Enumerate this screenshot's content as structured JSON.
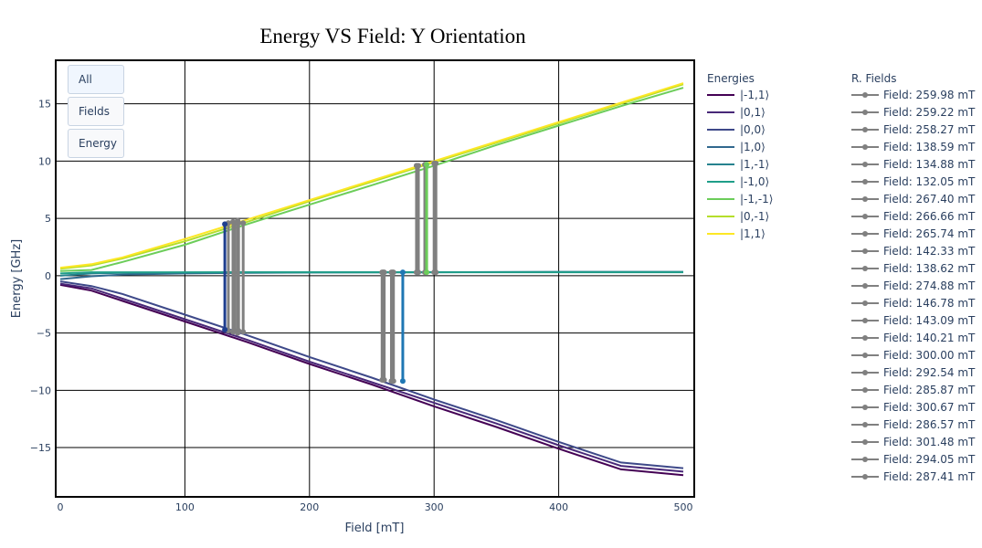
{
  "buttons": [
    {
      "label": "All",
      "active": true
    },
    {
      "label": "Fields",
      "active": false
    },
    {
      "label": "Energy",
      "active": false
    }
  ],
  "chart_data": {
    "type": "line",
    "title": "Energy VS Field: Y Orientation",
    "xlabel": "Field [mT]",
    "ylabel": "Energy [GHz]",
    "xlim": [
      0,
      500
    ],
    "ylim": [
      -19.3,
      18.8
    ],
    "xticks": [
      0,
      100,
      200,
      300,
      400,
      500
    ],
    "yticks": [
      -15,
      -10,
      -5,
      0,
      5,
      10,
      15
    ],
    "grid": true,
    "legend_energies_title": "Energies",
    "legend_fields_title": "R. Fields",
    "series": [
      {
        "name": "|-1,1⟩",
        "color": "#440154",
        "x": [
          0,
          25,
          50,
          100,
          150,
          200,
          250,
          300,
          350,
          400,
          450,
          500
        ],
        "y": [
          -0.8,
          -1.3,
          -2.2,
          -4.0,
          -5.8,
          -7.7,
          -9.5,
          -11.4,
          -13.2,
          -15.1,
          -16.9,
          -17.4
        ]
      },
      {
        "name": "|0,1⟩",
        "color": "#482878",
        "x": [
          0,
          25,
          50,
          100,
          150,
          200,
          250,
          300,
          350,
          400,
          450,
          500
        ],
        "y": [
          -0.7,
          -1.1,
          -2.0,
          -3.8,
          -5.6,
          -7.5,
          -9.3,
          -11.1,
          -12.9,
          -14.8,
          -16.6,
          -17.1
        ]
      },
      {
        "name": "|0,0⟩",
        "color": "#3e4989",
        "x": [
          0,
          25,
          50,
          100,
          150,
          200,
          250,
          300,
          350,
          400,
          450,
          500
        ],
        "y": [
          -0.5,
          -0.9,
          -1.6,
          -3.4,
          -5.2,
          -7.1,
          -8.9,
          -10.8,
          -12.6,
          -14.5,
          -16.3,
          -16.8
        ]
      },
      {
        "name": "|1,0⟩",
        "color": "#31688e",
        "x": [
          0,
          25,
          50,
          100,
          150,
          200,
          300,
          400,
          500
        ],
        "y": [
          -0.3,
          -0.05,
          0.1,
          0.2,
          0.25,
          0.28,
          0.3,
          0.32,
          0.33
        ]
      },
      {
        "name": "|1,-1⟩",
        "color": "#26828e",
        "x": [
          0,
          25,
          50,
          100,
          150,
          200,
          300,
          400,
          500
        ],
        "y": [
          0.0,
          0.2,
          0.25,
          0.28,
          0.3,
          0.3,
          0.31,
          0.32,
          0.33
        ]
      },
      {
        "name": "|-1,0⟩",
        "color": "#1f9e89",
        "x": [
          0,
          25,
          50,
          100,
          150,
          200,
          300,
          400,
          500
        ],
        "y": [
          0.2,
          0.3,
          0.3,
          0.3,
          0.3,
          0.3,
          0.3,
          0.3,
          0.3
        ]
      },
      {
        "name": "|-1,-1⟩",
        "color": "#6ccd5a",
        "x": [
          0,
          25,
          50,
          100,
          150,
          200,
          250,
          300,
          350,
          400,
          450,
          500
        ],
        "y": [
          0.4,
          0.5,
          1.2,
          2.7,
          4.5,
          6.2,
          7.9,
          9.6,
          11.4,
          13.1,
          14.8,
          16.4
        ]
      },
      {
        "name": "|0,-1⟩",
        "color": "#b5de2b",
        "x": [
          0,
          25,
          50,
          100,
          150,
          200,
          250,
          300,
          350,
          400,
          450,
          500
        ],
        "y": [
          0.6,
          0.9,
          1.5,
          3.0,
          4.7,
          6.5,
          8.2,
          9.9,
          11.6,
          13.3,
          15.0,
          16.7
        ]
      },
      {
        "name": "|1,1⟩",
        "color": "#fde725",
        "x": [
          0,
          25,
          50,
          100,
          150,
          200,
          250,
          300,
          350,
          400,
          450,
          500
        ],
        "y": [
          0.7,
          1.0,
          1.6,
          3.2,
          4.9,
          6.6,
          8.3,
          10.0,
          11.7,
          13.4,
          15.1,
          16.8
        ]
      }
    ],
    "resonance_fields": [
      {
        "name": "Field: 259.98 mT",
        "x": 259.98,
        "y": [
          0.3,
          -9.1
        ],
        "color": "#808080"
      },
      {
        "name": "Field: 259.22 mT",
        "x": 259.22,
        "y": [
          0.3,
          -9.1
        ],
        "color": "#808080"
      },
      {
        "name": "Field: 258.27 mT",
        "x": 258.27,
        "y": [
          0.3,
          -9.1
        ],
        "color": "#808080"
      },
      {
        "name": "Field: 138.59 mT",
        "x": 138.59,
        "y": [
          4.7,
          -4.9
        ],
        "color": "#808080"
      },
      {
        "name": "Field: 134.88 mT",
        "x": 134.88,
        "y": [
          4.6,
          -4.8
        ],
        "color": "#808080"
      },
      {
        "name": "Field: 132.05 mT",
        "x": 132.05,
        "y": [
          4.5,
          -4.7
        ],
        "color": "#1f3f8f"
      },
      {
        "name": "Field: 267.40 mT",
        "x": 267.4,
        "y": [
          0.3,
          -9.2
        ],
        "color": "#808080"
      },
      {
        "name": "Field: 266.66 mT",
        "x": 266.66,
        "y": [
          0.3,
          -9.2
        ],
        "color": "#808080"
      },
      {
        "name": "Field: 265.74 mT",
        "x": 265.74,
        "y": [
          0.3,
          -9.2
        ],
        "color": "#808080"
      },
      {
        "name": "Field: 142.33 mT",
        "x": 142.33,
        "y": [
          4.8,
          -5.0
        ],
        "color": "#808080"
      },
      {
        "name": "Field: 138.62 mT",
        "x": 138.62,
        "y": [
          4.7,
          -4.9
        ],
        "color": "#808080"
      },
      {
        "name": "Field: 274.88 mT",
        "x": 274.88,
        "y": [
          0.3,
          -9.2
        ],
        "color": "#1f77b4"
      },
      {
        "name": "Field: 146.78 mT",
        "x": 146.78,
        "y": [
          4.6,
          -4.9
        ],
        "color": "#808080"
      },
      {
        "name": "Field: 143.09 mT",
        "x": 143.09,
        "y": [
          4.6,
          -4.8
        ],
        "color": "#808080"
      },
      {
        "name": "Field: 140.21 mT",
        "x": 140.21,
        "y": [
          4.6,
          -4.8
        ],
        "color": "#808080"
      },
      {
        "name": "Field: 300.00 mT",
        "x": 300.0,
        "y": [
          9.8,
          0.3
        ],
        "color": "#808080"
      },
      {
        "name": "Field: 292.54 mT",
        "x": 292.54,
        "y": [
          9.7,
          0.3
        ],
        "color": "#808080"
      },
      {
        "name": "Field: 285.87 mT",
        "x": 285.87,
        "y": [
          9.6,
          0.3
        ],
        "color": "#808080"
      },
      {
        "name": "Field: 300.67 mT",
        "x": 300.67,
        "y": [
          9.8,
          0.3
        ],
        "color": "#808080"
      },
      {
        "name": "Field: 286.57 mT",
        "x": 286.57,
        "y": [
          9.6,
          0.3
        ],
        "color": "#808080"
      },
      {
        "name": "Field: 301.48 mT",
        "x": 301.48,
        "y": [
          9.8,
          0.3
        ],
        "color": "#808080"
      },
      {
        "name": "Field: 294.05 mT",
        "x": 294.05,
        "y": [
          9.7,
          0.3
        ],
        "color": "#6ccd5a"
      },
      {
        "name": "Field: 287.41 mT",
        "x": 287.41,
        "y": [
          9.6,
          0.3
        ],
        "color": "#808080"
      }
    ]
  }
}
